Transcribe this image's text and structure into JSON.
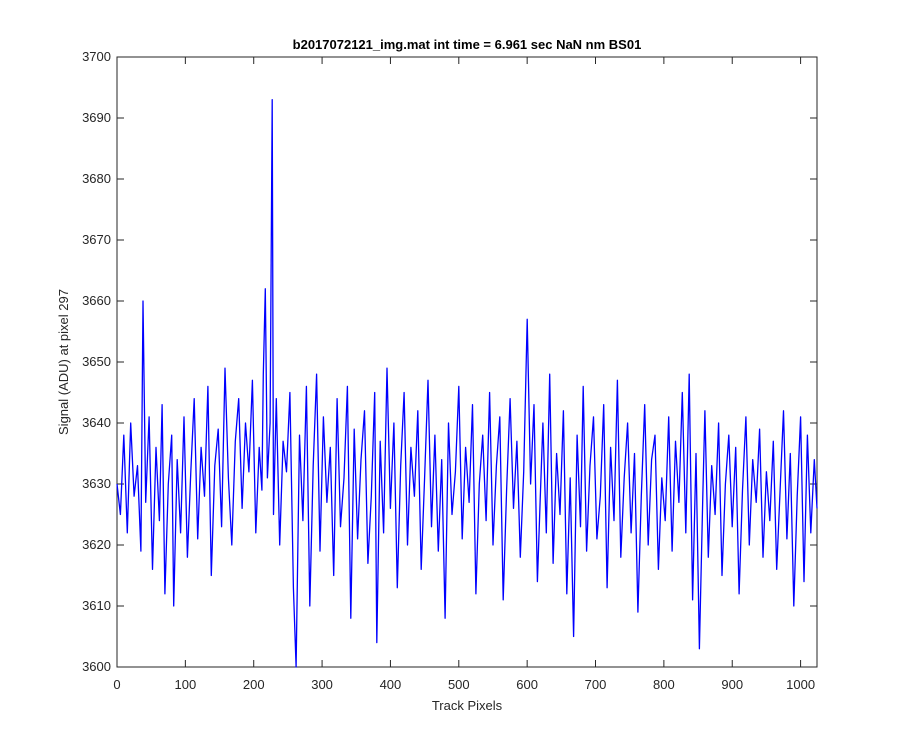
{
  "chart_data": {
    "type": "line",
    "title": "b2017072121_img.mat int time = 6.961 sec  NaN nm BS01",
    "xlabel": "Track Pixels",
    "ylabel": "Signal (ADU) at pixel 297",
    "xlim": [
      0,
      1024
    ],
    "ylim": [
      3600,
      3700
    ],
    "xticks": [
      0,
      100,
      200,
      300,
      400,
      500,
      600,
      700,
      800,
      900,
      1000
    ],
    "yticks": [
      3600,
      3610,
      3620,
      3630,
      3640,
      3650,
      3660,
      3670,
      3680,
      3690,
      3700
    ],
    "grid": false,
    "line_color": "#0000ff",
    "series": [
      {
        "x": [
          0,
          5,
          10,
          15,
          20,
          25,
          30,
          35,
          38,
          42,
          47,
          52,
          57,
          62,
          66,
          70,
          75,
          80,
          83,
          88,
          93,
          98,
          103,
          108,
          113,
          118,
          123,
          128,
          133,
          138,
          143,
          148,
          153,
          158,
          163,
          168,
          173,
          178,
          183,
          188,
          193,
          198,
          203,
          208,
          212,
          214,
          217,
          220,
          224,
          227,
          229,
          233,
          238,
          243,
          248,
          253,
          258,
          262,
          267,
          272,
          277,
          282,
          287,
          292,
          297,
          302,
          307,
          312,
          317,
          322,
          327,
          332,
          337,
          342,
          347,
          352,
          357,
          362,
          367,
          372,
          377,
          380,
          385,
          390,
          395,
          400,
          405,
          410,
          415,
          420,
          425,
          430,
          435,
          440,
          445,
          450,
          455,
          460,
          465,
          470,
          475,
          480,
          485,
          490,
          495,
          500,
          505,
          510,
          515,
          520,
          525,
          530,
          535,
          540,
          545,
          550,
          555,
          560,
          565,
          570,
          575,
          580,
          585,
          590,
          595,
          600,
          605,
          610,
          615,
          619,
          623,
          628,
          633,
          638,
          643,
          648,
          653,
          658,
          663,
          668,
          673,
          678,
          682,
          687,
          692,
          697,
          702,
          707,
          712,
          717,
          722,
          727,
          732,
          737,
          742,
          747,
          752,
          757,
          762,
          767,
          772,
          777,
          782,
          787,
          792,
          797,
          802,
          807,
          812,
          817,
          822,
          827,
          832,
          837,
          842,
          847,
          852,
          857,
          860,
          865,
          870,
          875,
          880,
          885,
          890,
          895,
          900,
          905,
          910,
          915,
          920,
          925,
          930,
          935,
          940,
          945,
          950,
          955,
          960,
          965,
          970,
          975,
          980,
          985,
          990,
          995,
          1000,
          1005,
          1010,
          1015,
          1020,
          1024
        ],
        "y": [
          3630,
          3625,
          3638,
          3622,
          3640,
          3628,
          3633,
          3619,
          3660,
          3627,
          3641,
          3616,
          3636,
          3624,
          3643,
          3612,
          3630,
          3638,
          3610,
          3634,
          3622,
          3641,
          3618,
          3632,
          3644,
          3621,
          3636,
          3628,
          3646,
          3615,
          3633,
          3639,
          3623,
          3649,
          3631,
          3620,
          3637,
          3644,
          3626,
          3640,
          3632,
          3647,
          3622,
          3636,
          3629,
          3648,
          3662,
          3631,
          3640,
          3693,
          3625,
          3644,
          3620,
          3637,
          3632,
          3645,
          3613,
          3600,
          3638,
          3624,
          3646,
          3610,
          3633,
          3648,
          3619,
          3641,
          3627,
          3636,
          3615,
          3644,
          3623,
          3631,
          3646,
          3608,
          3639,
          3621,
          3634,
          3642,
          3617,
          3628,
          3645,
          3604,
          3637,
          3622,
          3649,
          3626,
          3640,
          3613,
          3633,
          3645,
          3620,
          3636,
          3628,
          3642,
          3616,
          3631,
          3647,
          3623,
          3638,
          3619,
          3634,
          3608,
          3640,
          3625,
          3632,
          3646,
          3621,
          3636,
          3627,
          3643,
          3612,
          3630,
          3638,
          3624,
          3645,
          3620,
          3633,
          3641,
          3611,
          3629,
          3644,
          3626,
          3637,
          3618,
          3632,
          3657,
          3630,
          3643,
          3614,
          3627,
          3640,
          3622,
          3648,
          3617,
          3635,
          3625,
          3642,
          3612,
          3631,
          3605,
          3638,
          3623,
          3646,
          3619,
          3633,
          3641,
          3621,
          3628,
          3643,
          3613,
          3636,
          3624,
          3647,
          3618,
          3631,
          3640,
          3622,
          3635,
          3609,
          3628,
          3643,
          3620,
          3634,
          3638,
          3616,
          3631,
          3624,
          3641,
          3619,
          3637,
          3627,
          3645,
          3622,
          3648,
          3611,
          3635,
          3603,
          3628,
          3642,
          3618,
          3633,
          3625,
          3640,
          3615,
          3630,
          3638,
          3623,
          3636,
          3612,
          3629,
          3641,
          3620,
          3634,
          3627,
          3639,
          3618,
          3632,
          3624,
          3637,
          3616,
          3629,
          3642,
          3621,
          3635,
          3610,
          3628,
          3641,
          3614,
          3638,
          3622,
          3634,
          3626
        ]
      }
    ]
  }
}
